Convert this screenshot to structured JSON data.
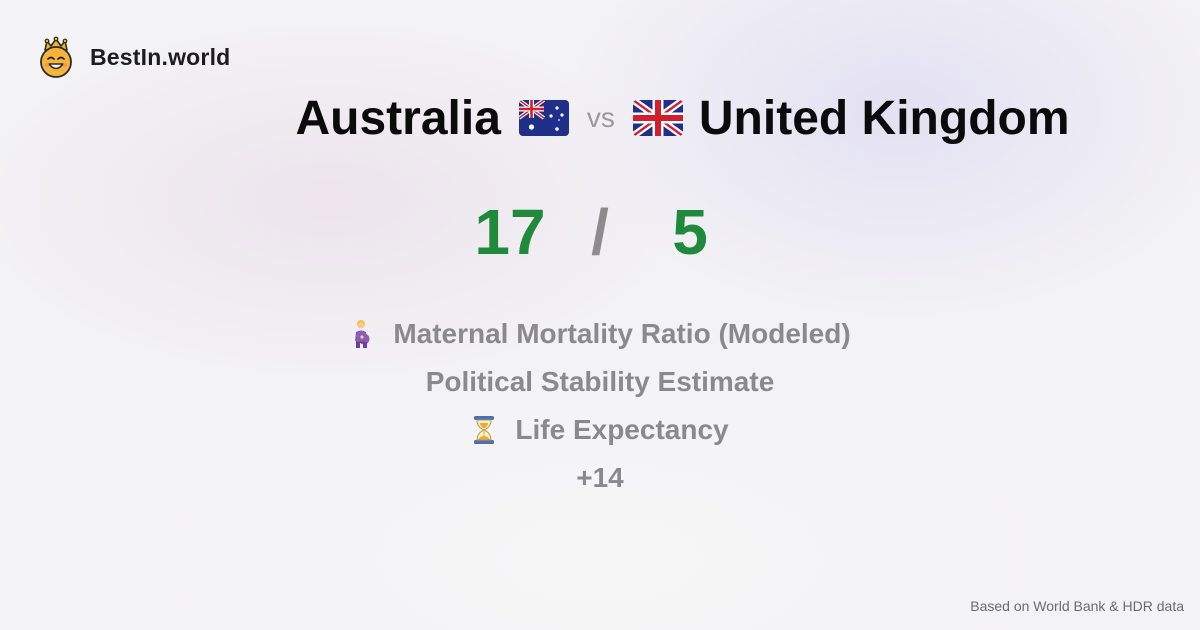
{
  "brand": {
    "name": "BestIn.world",
    "icon": "crowned-smiley-icon"
  },
  "comparison": {
    "country_a": "Australia",
    "country_b": "United Kingdom",
    "vs_label": "vs",
    "flag_a_icon": "australia-flag-icon",
    "flag_b_icon": "uk-flag-icon"
  },
  "score": {
    "a": "17",
    "separator": "/",
    "b": "5",
    "color": "#1f8a3b"
  },
  "metrics": [
    {
      "label": "Maternal Mortality Ratio (Modeled)",
      "icon": "pregnant-woman-icon"
    },
    {
      "label": "Political Stability Estimate",
      "icon": ""
    },
    {
      "label": "Life Expectancy",
      "icon": "hourglass-icon"
    }
  ],
  "more_label": "+14",
  "footer": "Based on World Bank & HDR data"
}
